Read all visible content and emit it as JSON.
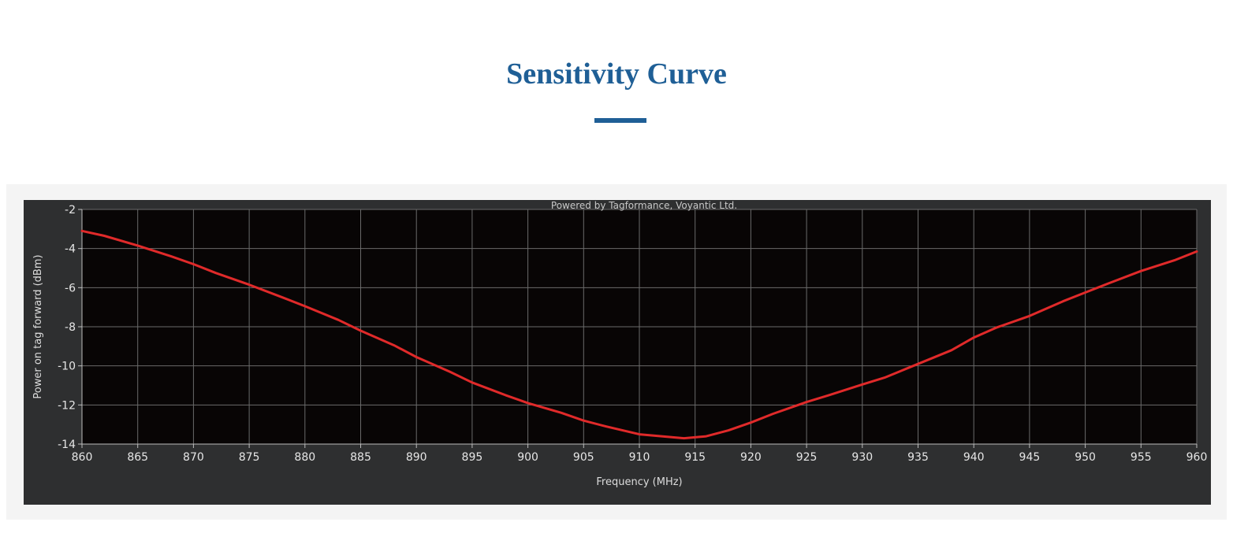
{
  "header": {
    "title": "Sensitivity Curve"
  },
  "chart_data": {
    "type": "line",
    "title": "Powered by Tagformance, Voyantic Ltd.",
    "xlabel": "Frequency (MHz)",
    "ylabel": "Power on tag forward (dBm)",
    "xlim": [
      860,
      960
    ],
    "ylim": [
      -14,
      -2
    ],
    "xticks": [
      860,
      865,
      870,
      875,
      880,
      885,
      890,
      895,
      900,
      905,
      910,
      915,
      920,
      925,
      930,
      935,
      940,
      945,
      950,
      955,
      960
    ],
    "yticks": [
      -2,
      -4,
      -6,
      -8,
      -10,
      -12,
      -14
    ],
    "grid": true,
    "series": [
      {
        "color": "#e02a2a",
        "x": [
          860,
          862,
          865,
          868,
          870,
          872,
          875,
          878,
          880,
          883,
          885,
          888,
          890,
          893,
          895,
          898,
          900,
          903,
          905,
          907,
          910,
          912,
          914,
          916,
          918,
          920,
          922,
          925,
          927,
          930,
          932,
          935,
          938,
          940,
          942,
          945,
          948,
          950,
          952,
          955,
          958,
          960
        ],
        "y": [
          -3.1,
          -3.35,
          -3.85,
          -4.4,
          -4.8,
          -5.25,
          -5.85,
          -6.5,
          -6.95,
          -7.65,
          -8.2,
          -8.95,
          -9.55,
          -10.3,
          -10.85,
          -11.5,
          -11.9,
          -12.4,
          -12.8,
          -13.1,
          -13.5,
          -13.6,
          -13.7,
          -13.6,
          -13.3,
          -12.9,
          -12.45,
          -11.85,
          -11.5,
          -10.95,
          -10.6,
          -9.9,
          -9.2,
          -8.55,
          -8.05,
          -7.45,
          -6.7,
          -6.25,
          -5.8,
          -5.15,
          -4.6,
          -4.15
        ]
      }
    ]
  }
}
